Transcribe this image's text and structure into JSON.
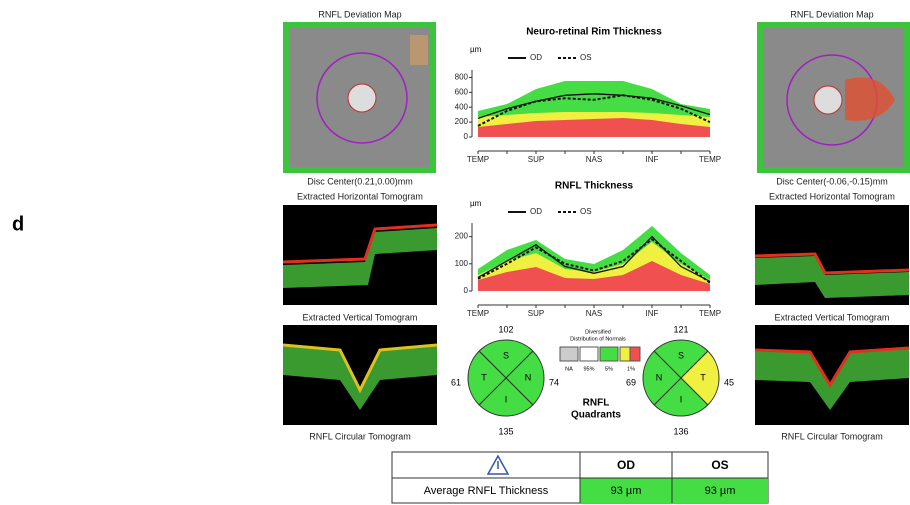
{
  "panel_label": "d",
  "left_eye": {
    "map_title": "RNFL Deviation Map",
    "disc_center": "Disc Center(0.21,0.00)mm",
    "horizontal_title": "Extracted Horizontal Tomogram",
    "vertical_title": "Extracted Vertical Tomogram",
    "circular_title": "RNFL Circular Tomogram"
  },
  "right_eye": {
    "map_title": "RNFL Deviation Map",
    "disc_center": "Disc Center(-0.06,-0.15)mm",
    "horizontal_title": "Extracted Horizontal Tomogram",
    "vertical_title": "Extracted Vertical Tomogram",
    "circular_title": "RNFL Circular Tomogram"
  },
  "chart_data": [
    {
      "type": "line",
      "title": "Neuro-retinal Rim Thickness",
      "y_label": "µm",
      "categories": [
        "TEMP",
        null,
        "SUP",
        null,
        "NAS",
        null,
        "INF",
        null,
        "TEMP"
      ],
      "ylim": [
        0,
        900
      ],
      "yticks": [
        0,
        200,
        400,
        600,
        800
      ],
      "series": [
        {
          "name": "OD",
          "color": "#111111",
          "style": "solid",
          "values": [
            250,
            380,
            480,
            560,
            580,
            560,
            520,
            420,
            300
          ]
        },
        {
          "name": "OS",
          "color": "#111111",
          "style": "dotted",
          "values": [
            150,
            350,
            480,
            520,
            500,
            560,
            500,
            380,
            200
          ]
        }
      ]
    },
    {
      "type": "line",
      "title": "RNFL Thickness",
      "y_label": "µm",
      "categories": [
        "TEMP",
        null,
        "SUP",
        null,
        "NAS",
        null,
        "INF",
        null,
        "TEMP"
      ],
      "ylim": [
        0,
        250
      ],
      "yticks": [
        0,
        100,
        200
      ],
      "series": [
        {
          "name": "OD",
          "color": "#111111",
          "style": "solid",
          "values": [
            50,
            110,
            170,
            90,
            65,
            90,
            200,
            90,
            35
          ]
        },
        {
          "name": "OS",
          "color": "#111111",
          "style": "dotted",
          "values": [
            45,
            100,
            160,
            100,
            75,
            110,
            190,
            110,
            30
          ]
        }
      ]
    }
  ],
  "quadrants": {
    "title": [
      "RNFL",
      "Quadrants"
    ],
    "od": {
      "S": 102,
      "T": 61,
      "N": 74,
      "I": 135,
      "letters": [
        "S",
        "T",
        "N",
        "I"
      ]
    },
    "os": {
      "S": 121,
      "N": 69,
      "T": 45,
      "I": 136,
      "letters": [
        "S",
        "N",
        "T",
        "I"
      ]
    },
    "legend": {
      "title": [
        "Diversified",
        "Distribution of Normals"
      ],
      "labels": [
        "NA",
        "95%",
        "5%",
        "1%"
      ]
    }
  },
  "table": {
    "header": [
      "OD",
      "OS"
    ],
    "rows": [
      [
        "Average RNFL Thickness",
        "93 µm",
        "93 µm"
      ]
    ]
  }
}
